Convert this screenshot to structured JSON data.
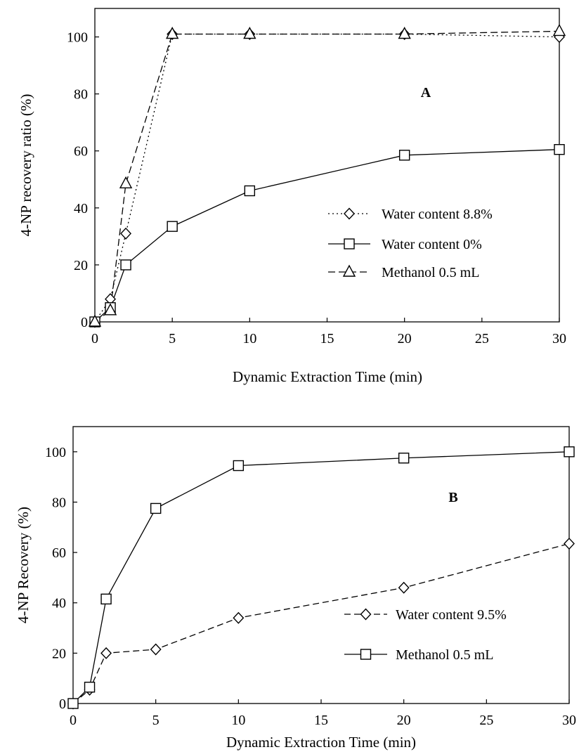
{
  "chart_data": [
    {
      "type": "line",
      "panel_label": "A",
      "xlabel": "Dynamic Extraction Time (min)",
      "ylabel": "4-NP recovery ratio (%)",
      "xlim": [
        0,
        30
      ],
      "ylim": [
        0,
        110
      ],
      "xticks": [
        0,
        5,
        10,
        15,
        20,
        25,
        30
      ],
      "yticks": [
        0,
        20,
        40,
        60,
        80,
        100
      ],
      "grid": false,
      "legend": "lower-right",
      "series": [
        {
          "name": "Water content 8.8%",
          "marker": "diamond",
          "dash": "2,4",
          "x": [
            0,
            1,
            2,
            5,
            10,
            20,
            30
          ],
          "y": [
            0,
            8,
            31,
            101,
            101,
            101,
            100
          ]
        },
        {
          "name": "Water content 0%",
          "marker": "square",
          "dash": "",
          "x": [
            0,
            1,
            2,
            5,
            10,
            20,
            30
          ],
          "y": [
            0,
            5,
            20,
            33.5,
            46,
            58.5,
            60.5
          ]
        },
        {
          "name": "Methanol 0.5 mL",
          "marker": "triangle",
          "dash": "10,5",
          "x": [
            0,
            1,
            2,
            5,
            10,
            20,
            30
          ],
          "y": [
            0,
            4,
            48.5,
            101,
            101,
            101,
            102
          ]
        }
      ]
    },
    {
      "type": "line",
      "panel_label": "B",
      "xlabel": "Dynamic Extraction Time (min)",
      "ylabel": "4-NP Recovery (%)",
      "xlim": [
        0,
        30
      ],
      "ylim": [
        0,
        110
      ],
      "xticks": [
        0,
        5,
        10,
        15,
        20,
        25,
        30
      ],
      "yticks": [
        0,
        20,
        40,
        60,
        80,
        100
      ],
      "grid": false,
      "legend": "lower-right",
      "series": [
        {
          "name": "Water content 9.5%",
          "marker": "diamond",
          "dash": "9,5",
          "x": [
            0,
            1,
            2,
            5,
            10,
            20,
            30
          ],
          "y": [
            0,
            5.5,
            20,
            21.5,
            34,
            46,
            63.5
          ]
        },
        {
          "name": "Methanol 0.5 mL",
          "marker": "square",
          "dash": "",
          "x": [
            0,
            1,
            2,
            5,
            10,
            20,
            30
          ],
          "y": [
            0,
            6.5,
            41.5,
            77.5,
            94.5,
            97.5,
            100
          ]
        }
      ]
    }
  ]
}
